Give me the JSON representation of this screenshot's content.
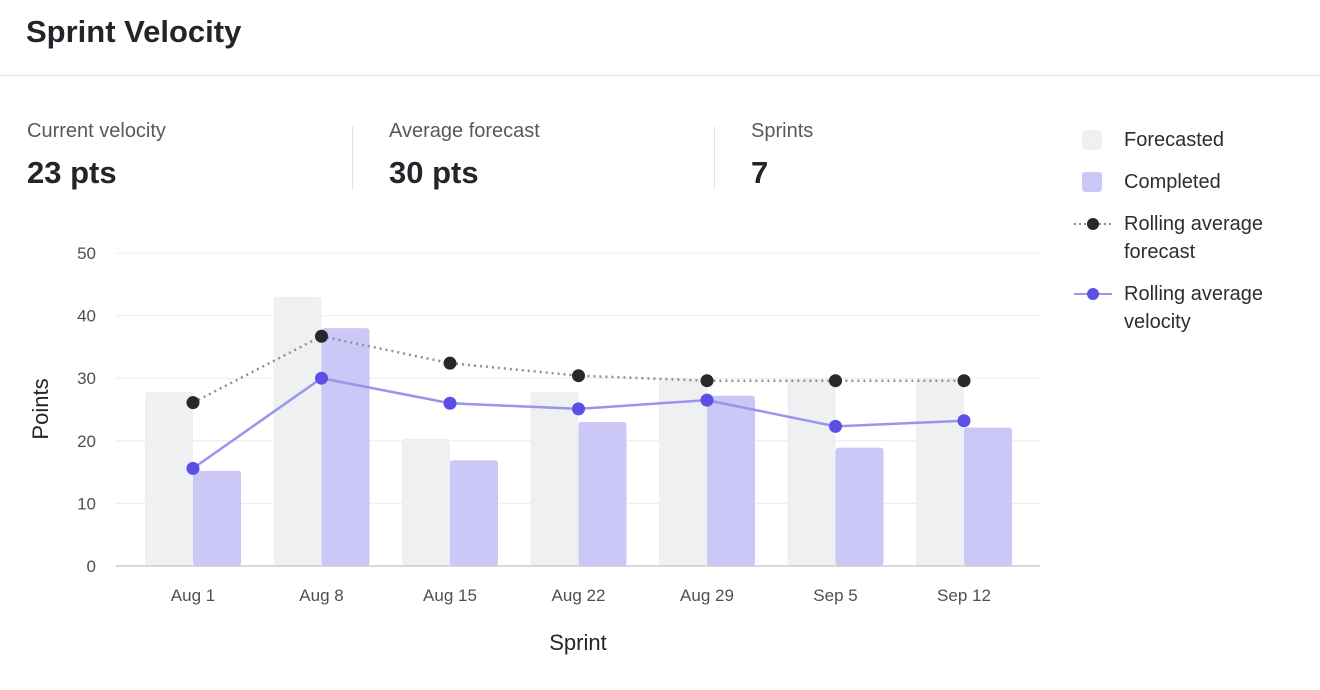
{
  "header": {
    "title": "Sprint Velocity"
  },
  "stats": [
    {
      "label": "Current velocity",
      "value": "23 pts"
    },
    {
      "label": "Average forecast",
      "value": "30 pts"
    },
    {
      "label": "Sprints",
      "value": "7"
    }
  ],
  "colors": {
    "forecasted": "#eff0f2",
    "completed": "#cbc7f6",
    "rolling_forecast": "#26282c",
    "rolling_forecast_line": "#8e9096",
    "rolling_velocity": "#5b4fe6",
    "rolling_velocity_line": "#9b93ec",
    "gridline": "#ececef",
    "axis": "#c9cbd0"
  },
  "chart_data": {
    "type": "bar",
    "title": "",
    "xlabel": "Sprint",
    "ylabel": "Points",
    "ylim": [
      0,
      50
    ],
    "yticks": [
      0,
      10,
      20,
      30,
      40,
      50
    ],
    "grid": true,
    "legend_position": "right",
    "categories": [
      "Aug 1",
      "Aug 8",
      "Aug 15",
      "Aug 22",
      "Aug 29",
      "Sep 5",
      "Sep 12"
    ],
    "series": [
      {
        "name": "Forecasted",
        "kind": "bar",
        "values": [
          27.8,
          43,
          20.3,
          27.8,
          30,
          30,
          30
        ]
      },
      {
        "name": "Completed",
        "kind": "bar",
        "values": [
          15.2,
          38,
          16.9,
          23,
          27.2,
          18.9,
          22.1
        ]
      },
      {
        "name": "Rolling average forecast",
        "kind": "line",
        "style": "dotted",
        "values": [
          26.1,
          36.7,
          32.4,
          30.4,
          29.6,
          29.6,
          29.6
        ]
      },
      {
        "name": "Rolling average velocity",
        "kind": "line",
        "style": "solid",
        "values": [
          15.6,
          30,
          26,
          25.1,
          26.5,
          22.3,
          23.2
        ]
      }
    ]
  }
}
